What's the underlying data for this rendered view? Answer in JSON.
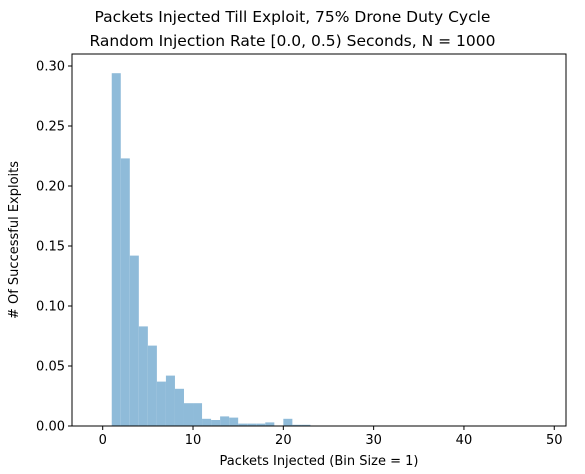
{
  "chart_data": {
    "type": "bar",
    "title_lines": [
      "Packets Injected Till Exploit, 75% Drone Duty Cycle",
      "Random Injection Rate [0.0, 0.5) Seconds, N = 1000"
    ],
    "xlabel": "Packets Injected (Bin Size = 1)",
    "ylabel": "# Of Successful Exploits",
    "xlim": [
      -3.4,
      51.3
    ],
    "ylim": [
      0,
      0.31
    ],
    "xticks": [
      0,
      10,
      20,
      30,
      40,
      50
    ],
    "yticks": [
      0.0,
      0.05,
      0.1,
      0.15,
      0.2,
      0.25,
      0.3
    ],
    "ytick_labels": [
      "0.00",
      "0.05",
      "0.10",
      "0.15",
      "0.20",
      "0.25",
      "0.30"
    ],
    "bar_color": "#8fbbd9",
    "bins": [
      {
        "start": 1,
        "end": 2,
        "value": 0.294
      },
      {
        "start": 2,
        "end": 3,
        "value": 0.223
      },
      {
        "start": 3,
        "end": 4,
        "value": 0.142
      },
      {
        "start": 4,
        "end": 5,
        "value": 0.083
      },
      {
        "start": 5,
        "end": 6,
        "value": 0.067
      },
      {
        "start": 6,
        "end": 7,
        "value": 0.037
      },
      {
        "start": 7,
        "end": 8,
        "value": 0.042
      },
      {
        "start": 8,
        "end": 9,
        "value": 0.031
      },
      {
        "start": 9,
        "end": 10,
        "value": 0.019
      },
      {
        "start": 10,
        "end": 11,
        "value": 0.019
      },
      {
        "start": 11,
        "end": 12,
        "value": 0.006
      },
      {
        "start": 12,
        "end": 13,
        "value": 0.005
      },
      {
        "start": 13,
        "end": 14,
        "value": 0.008
      },
      {
        "start": 14,
        "end": 15,
        "value": 0.007
      },
      {
        "start": 15,
        "end": 16,
        "value": 0.002
      },
      {
        "start": 16,
        "end": 17,
        "value": 0.002
      },
      {
        "start": 17,
        "end": 18,
        "value": 0.002
      },
      {
        "start": 18,
        "end": 19,
        "value": 0.003
      },
      {
        "start": 19,
        "end": 20,
        "value": 0.0
      },
      {
        "start": 20,
        "end": 21,
        "value": 0.006
      },
      {
        "start": 21,
        "end": 22,
        "value": 0.001
      },
      {
        "start": 22,
        "end": 23,
        "value": 0.001
      }
    ]
  }
}
